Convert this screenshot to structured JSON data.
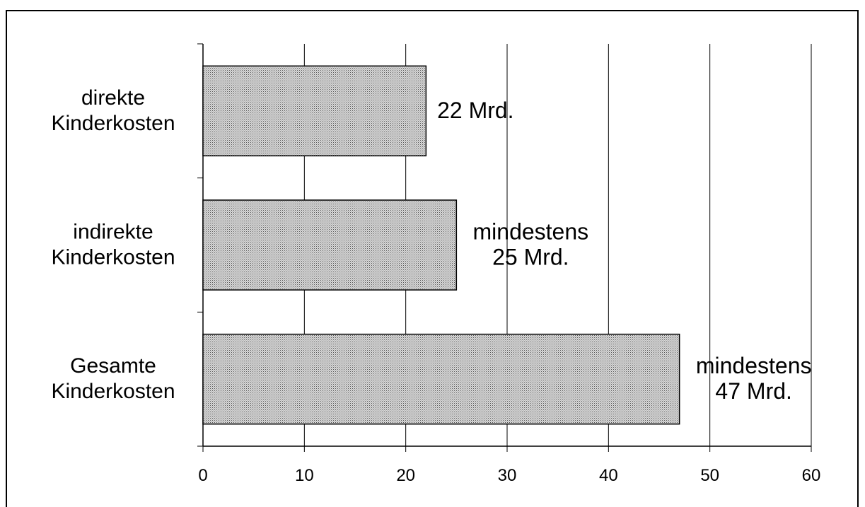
{
  "chart_data": {
    "type": "bar",
    "orientation": "horizontal",
    "title": "",
    "xlabel": "",
    "ylabel": "",
    "categories": [
      [
        "direkte",
        "Kinderkosten"
      ],
      [
        "indirekte",
        "Kinderkosten"
      ],
      [
        "Gesamte",
        "Kinderkosten"
      ]
    ],
    "values": [
      22,
      25,
      47
    ],
    "data_labels": [
      [
        "22 Mrd."
      ],
      [
        "mindestens",
        "25 Mrd."
      ],
      [
        "mindestens",
        "47 Mrd."
      ]
    ],
    "xlim": [
      0,
      60
    ],
    "xticks": [
      0,
      10,
      20,
      30,
      40,
      50,
      60
    ],
    "grid": "vertical",
    "legend": "none",
    "bar_fill": "#c8c8c8",
    "bar_pattern": "fine-dotted"
  }
}
